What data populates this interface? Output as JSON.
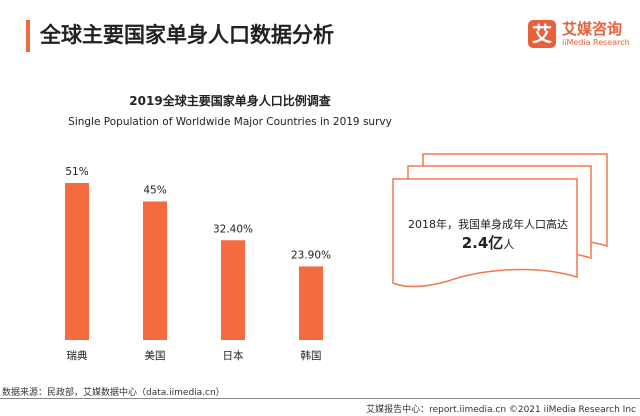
{
  "header": {
    "title": "全球主要国家单身人口数据分析",
    "logo_mark": "艾",
    "logo_cn": "艾媒咨询",
    "logo_en": "iiMedia Research"
  },
  "chart_data": {
    "type": "bar",
    "title": "2019全球主要国家单身人口比例调查",
    "subtitle": "Single Population of Worldwide Major Countries in 2019 survy",
    "categories": [
      "瑞典",
      "美国",
      "日本",
      "韩国"
    ],
    "values": [
      51,
      45,
      32.4,
      23.9
    ],
    "data_labels": [
      "51%",
      "45%",
      "32.40%",
      "23.90%"
    ],
    "unit": "%",
    "ylim": [
      0,
      60
    ],
    "grid": false,
    "color": "#f36b3f"
  },
  "note": {
    "line1": "2018年，我国单身成年人口高达",
    "value": "2.4亿",
    "unit": "人",
    "border_color": "#f07850"
  },
  "source": "数据来源：民政部，艾媒数据中心（data.iimedia.cn）",
  "footer": "艾媒报告中心：report.iimedia.cn  ©2021  iiMedia Research Inc"
}
